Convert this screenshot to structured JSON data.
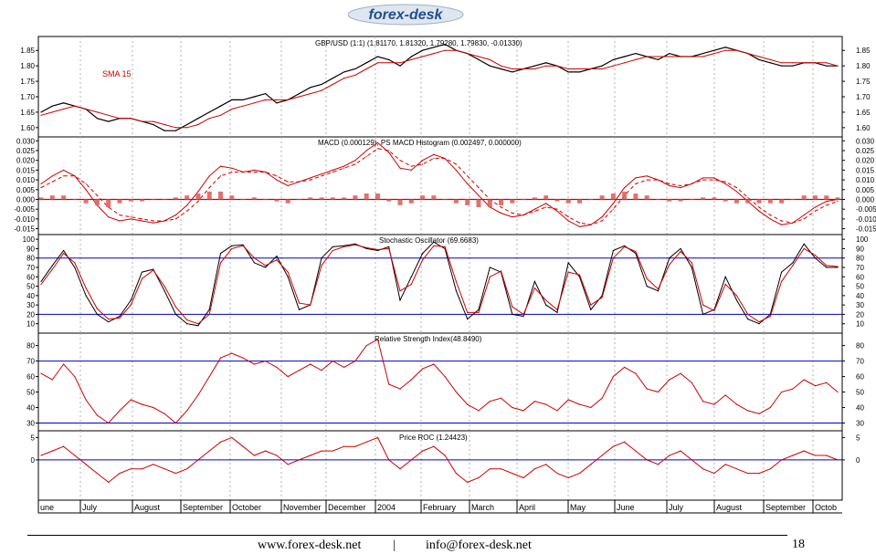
{
  "logo": {
    "text": "forex-desk"
  },
  "footer": {
    "website": "www.forex-desk.net",
    "separator": "|",
    "email": "info@forex-desk.net",
    "page_number": "18"
  },
  "colors": {
    "price": "#000000",
    "indicator": "#cc0000",
    "reference_line": "#0000cc",
    "histogram": "#e06060",
    "grid": "#b0b0b0",
    "logo_blue": "#1f4f8f"
  },
  "chart_data": [
    {
      "type": "line",
      "name": "price",
      "title": "GBP/USD (1:1) (1.81170, 1.81320, 1.79280, 1.79830, -0.01330)",
      "annotation": "SMA 15",
      "ylim": [
        1.57,
        1.895
      ],
      "yticks": [
        "1.85",
        "1.80",
        "1.75",
        "1.70",
        "1.65",
        "1.60"
      ],
      "series": [
        {
          "name": "GBP/USD",
          "values": [
            1.65,
            1.67,
            1.68,
            1.67,
            1.66,
            1.63,
            1.62,
            1.63,
            1.63,
            1.62,
            1.61,
            1.59,
            1.59,
            1.61,
            1.63,
            1.65,
            1.67,
            1.69,
            1.69,
            1.7,
            1.71,
            1.68,
            1.69,
            1.71,
            1.73,
            1.74,
            1.76,
            1.78,
            1.79,
            1.81,
            1.83,
            1.82,
            1.8,
            1.83,
            1.85,
            1.86,
            1.87,
            1.85,
            1.84,
            1.82,
            1.8,
            1.79,
            1.78,
            1.79,
            1.8,
            1.81,
            1.8,
            1.78,
            1.78,
            1.79,
            1.8,
            1.82,
            1.83,
            1.84,
            1.83,
            1.82,
            1.84,
            1.83,
            1.83,
            1.84,
            1.85,
            1.86,
            1.85,
            1.84,
            1.82,
            1.81,
            1.8,
            1.8,
            1.81,
            1.81,
            1.8,
            1.8
          ]
        },
        {
          "name": "SMA 15",
          "values": [
            1.64,
            1.65,
            1.66,
            1.67,
            1.66,
            1.65,
            1.64,
            1.63,
            1.63,
            1.62,
            1.62,
            1.61,
            1.6,
            1.6,
            1.61,
            1.63,
            1.64,
            1.66,
            1.67,
            1.68,
            1.69,
            1.69,
            1.69,
            1.7,
            1.71,
            1.72,
            1.74,
            1.76,
            1.77,
            1.79,
            1.81,
            1.81,
            1.81,
            1.82,
            1.83,
            1.84,
            1.85,
            1.85,
            1.84,
            1.83,
            1.82,
            1.8,
            1.79,
            1.79,
            1.79,
            1.8,
            1.8,
            1.79,
            1.79,
            1.79,
            1.79,
            1.8,
            1.81,
            1.82,
            1.83,
            1.83,
            1.83,
            1.83,
            1.83,
            1.83,
            1.84,
            1.85,
            1.85,
            1.84,
            1.83,
            1.82,
            1.81,
            1.81,
            1.81,
            1.81,
            1.81,
            1.8
          ]
        }
      ]
    },
    {
      "type": "line",
      "name": "macd",
      "title": "MACD (0.000129), PS MACD Histogram (0.002497, 0.000000)",
      "ylim": [
        -0.018,
        0.032
      ],
      "yticks": [
        "0.030",
        "0.025",
        "0.020",
        "0.015",
        "0.010",
        "0.005",
        "0.000",
        "-0.005",
        "-0.010",
        "-0.015"
      ],
      "series": [
        {
          "name": "MACD",
          "values": [
            0.008,
            0.012,
            0.015,
            0.012,
            0.005,
            -0.003,
            -0.009,
            -0.011,
            -0.01,
            -0.011,
            -0.012,
            -0.011,
            -0.008,
            -0.003,
            0.004,
            0.012,
            0.017,
            0.016,
            0.014,
            0.015,
            0.014,
            0.01,
            0.007,
            0.009,
            0.011,
            0.013,
            0.015,
            0.017,
            0.02,
            0.025,
            0.029,
            0.024,
            0.016,
            0.015,
            0.02,
            0.023,
            0.021,
            0.015,
            0.008,
            0.002,
            -0.004,
            -0.007,
            -0.009,
            -0.008,
            -0.005,
            -0.002,
            -0.006,
            -0.011,
            -0.014,
            -0.013,
            -0.009,
            -0.002,
            0.006,
            0.011,
            0.012,
            0.01,
            0.007,
            0.006,
            0.008,
            0.011,
            0.011,
            0.008,
            0.004,
            -0.001,
            -0.006,
            -0.01,
            -0.013,
            -0.012,
            -0.008,
            -0.004,
            -0.001,
            0.0
          ]
        },
        {
          "name": "Signal",
          "values": [
            0.006,
            0.009,
            0.012,
            0.012,
            0.008,
            0.002,
            -0.004,
            -0.008,
            -0.009,
            -0.01,
            -0.011,
            -0.011,
            -0.01,
            -0.006,
            -0.001,
            0.006,
            0.012,
            0.014,
            0.014,
            0.014,
            0.014,
            0.012,
            0.009,
            0.009,
            0.01,
            0.012,
            0.014,
            0.016,
            0.018,
            0.022,
            0.026,
            0.025,
            0.02,
            0.017,
            0.018,
            0.021,
            0.021,
            0.018,
            0.012,
            0.006,
            0.0,
            -0.004,
            -0.007,
            -0.008,
            -0.006,
            -0.004,
            -0.005,
            -0.009,
            -0.012,
            -0.013,
            -0.011,
            -0.005,
            0.002,
            0.008,
            0.01,
            0.01,
            0.008,
            0.007,
            0.008,
            0.01,
            0.01,
            0.009,
            0.006,
            0.001,
            -0.004,
            -0.008,
            -0.011,
            -0.012,
            -0.01,
            -0.006,
            -0.003,
            -0.001
          ]
        },
        {
          "name": "Histogram",
          "values": [
            0.001,
            0.002,
            0.002,
            0.0,
            -0.002,
            -0.003,
            -0.004,
            -0.002,
            -0.001,
            -0.001,
            0.0,
            0.0,
            0.001,
            0.002,
            0.003,
            0.004,
            0.004,
            0.002,
            0.0,
            0.001,
            0.0,
            -0.001,
            -0.002,
            0.0,
            0.001,
            0.001,
            0.001,
            0.001,
            0.002,
            0.003,
            0.003,
            -0.001,
            -0.003,
            -0.002,
            0.002,
            0.002,
            0.0,
            -0.002,
            -0.003,
            -0.004,
            -0.004,
            -0.003,
            -0.002,
            0.0,
            0.001,
            0.002,
            -0.001,
            -0.002,
            -0.002,
            0.0,
            0.002,
            0.003,
            0.004,
            0.003,
            0.002,
            0.0,
            -0.001,
            -0.001,
            0.0,
            0.001,
            0.001,
            -0.001,
            -0.002,
            -0.002,
            -0.002,
            -0.002,
            -0.002,
            0.0,
            0.002,
            0.002,
            0.002,
            0.001
          ]
        }
      ]
    },
    {
      "type": "line",
      "name": "stochastic",
      "title": "Stochastic Oscillator (69.6683)",
      "ylim": [
        0,
        105
      ],
      "yticks": [
        "100",
        "90",
        "80",
        "70",
        "60",
        "50",
        "40",
        "30",
        "20",
        "10"
      ],
      "reference_lines": [
        80,
        20
      ],
      "series": [
        {
          "name": "%K",
          "values": [
            55,
            72,
            88,
            70,
            40,
            20,
            12,
            18,
            35,
            65,
            68,
            45,
            20,
            10,
            8,
            25,
            85,
            93,
            94,
            75,
            70,
            82,
            60,
            25,
            30,
            80,
            92,
            93,
            95,
            90,
            88,
            92,
            35,
            60,
            85,
            97,
            90,
            45,
            15,
            25,
            70,
            65,
            20,
            18,
            55,
            30,
            22,
            75,
            60,
            25,
            40,
            88,
            93,
            85,
            50,
            45,
            80,
            90,
            70,
            20,
            25,
            60,
            35,
            15,
            10,
            20,
            65,
            75,
            95,
            80,
            70,
            70
          ]
        },
        {
          "name": "%D",
          "values": [
            52,
            68,
            85,
            75,
            48,
            26,
            15,
            16,
            30,
            58,
            67,
            50,
            28,
            14,
            10,
            20,
            75,
            90,
            93,
            80,
            72,
            78,
            65,
            32,
            30,
            72,
            88,
            92,
            94,
            91,
            89,
            90,
            45,
            52,
            78,
            93,
            92,
            55,
            22,
            22,
            60,
            66,
            28,
            20,
            48,
            35,
            25,
            65,
            62,
            30,
            38,
            80,
            92,
            87,
            58,
            47,
            73,
            87,
            75,
            30,
            24,
            52,
            40,
            20,
            12,
            18,
            55,
            72,
            90,
            83,
            72,
            71
          ]
        }
      ]
    },
    {
      "type": "line",
      "name": "rsi",
      "title": "Relative Strength Index(48.8490)",
      "ylim": [
        25,
        88
      ],
      "yticks": [
        "80",
        "70",
        "60",
        "50",
        "40",
        "30"
      ],
      "reference_lines": [
        70,
        30
      ],
      "series": [
        {
          "name": "RSI",
          "values": [
            62,
            58,
            68,
            60,
            45,
            35,
            30,
            38,
            45,
            42,
            40,
            36,
            30,
            38,
            48,
            60,
            72,
            75,
            72,
            68,
            70,
            66,
            60,
            64,
            68,
            64,
            70,
            66,
            70,
            80,
            84,
            55,
            52,
            58,
            65,
            68,
            60,
            50,
            42,
            38,
            44,
            46,
            40,
            38,
            44,
            42,
            38,
            45,
            42,
            40,
            46,
            60,
            66,
            62,
            52,
            50,
            58,
            62,
            56,
            44,
            42,
            48,
            42,
            38,
            36,
            40,
            50,
            52,
            58,
            54,
            56,
            50
          ]
        }
      ]
    },
    {
      "type": "line",
      "name": "roc",
      "title": "Price ROC (1.24423)",
      "ylim": [
        -9,
        6.5
      ],
      "yticks": [
        "5",
        "0"
      ],
      "reference_lines": [
        0
      ],
      "series": [
        {
          "name": "ROC",
          "values": [
            1,
            2,
            3,
            1,
            -1,
            -3,
            -5,
            -3,
            -2,
            -2,
            -1,
            -2,
            -3,
            -2,
            0,
            2,
            4,
            5,
            3,
            1,
            2,
            1,
            -1,
            0,
            1,
            2,
            2,
            3,
            3,
            4,
            5,
            0,
            -2,
            0,
            2,
            3,
            1,
            -3,
            -5,
            -4,
            -2,
            -2,
            -3,
            -4,
            -2,
            -1,
            -3,
            -4,
            -3,
            -1,
            1,
            3,
            4,
            2,
            0,
            -1,
            1,
            2,
            0,
            -2,
            -3,
            -1,
            -2,
            -3,
            -3,
            -2,
            0,
            1,
            2,
            1,
            1,
            0
          ]
        }
      ]
    }
  ],
  "x_axis": {
    "labels": [
      "une",
      "July",
      "August",
      "September",
      "October",
      "November",
      "December",
      "2004",
      "February",
      "March",
      "April",
      "May",
      "June",
      "July",
      "August",
      "September",
      "Octob"
    ]
  }
}
